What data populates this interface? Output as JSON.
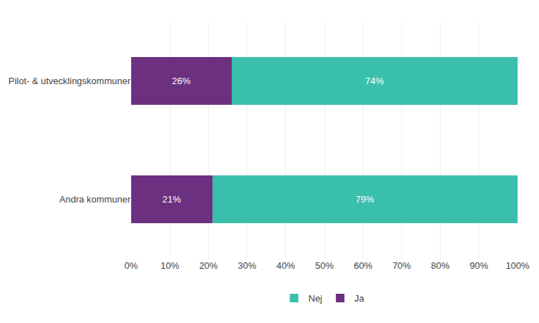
{
  "chart_data": {
    "type": "bar",
    "orientation": "horizontal",
    "stacked": true,
    "data_labels": true,
    "categories": [
      "Pilot- & utvecklingskommuner",
      "Andra kommuner"
    ],
    "series": [
      {
        "name": "Ja",
        "color": "#6B3080",
        "values": [
          26,
          21
        ],
        "value_labels": [
          "26%",
          "21%"
        ]
      },
      {
        "name": "Nej",
        "color": "#3BBFAD",
        "values": [
          74,
          79
        ],
        "value_labels": [
          "74%",
          "79%"
        ]
      }
    ],
    "xlim": [
      0,
      100
    ],
    "xticks": [
      {
        "value": 0,
        "label": "0%"
      },
      {
        "value": 10,
        "label": "10%"
      },
      {
        "value": 20,
        "label": "20%"
      },
      {
        "value": 30,
        "label": "30%"
      },
      {
        "value": 40,
        "label": "40%"
      },
      {
        "value": 50,
        "label": "50%"
      },
      {
        "value": 60,
        "label": "60%"
      },
      {
        "value": 70,
        "label": "70%"
      },
      {
        "value": 80,
        "label": "80%"
      },
      {
        "value": 90,
        "label": "90%"
      },
      {
        "value": 100,
        "label": "100%"
      }
    ],
    "grid": true,
    "legend": "bottom"
  }
}
